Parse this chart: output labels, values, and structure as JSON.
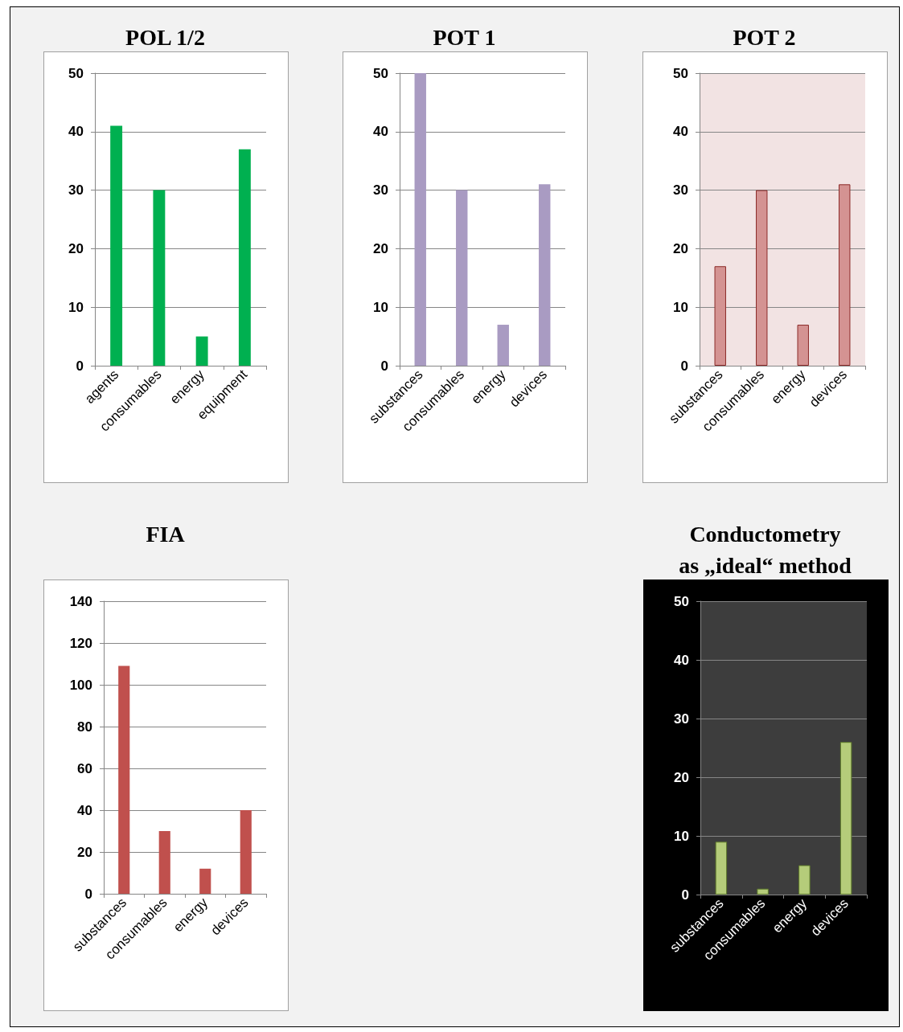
{
  "chart_data": [
    {
      "type": "bar",
      "title": "POL 1/2",
      "categories": [
        "agents",
        "consumables",
        "energy",
        "equipment"
      ],
      "values": [
        41,
        30,
        5,
        37
      ],
      "color": "#00b050",
      "ylim": [
        0,
        50
      ],
      "yticks": [
        0,
        10,
        20,
        30,
        40,
        50
      ],
      "grid": "y"
    },
    {
      "type": "bar",
      "title": "POT 1",
      "categories": [
        "substances",
        "consumables",
        "energy",
        "devices"
      ],
      "values": [
        50,
        30,
        7,
        31
      ],
      "color": "#a99bc2",
      "ylim": [
        0,
        50
      ],
      "yticks": [
        0,
        10,
        20,
        30,
        40,
        50
      ],
      "grid": "y"
    },
    {
      "type": "bar",
      "title": "POT 2",
      "categories": [
        "substances",
        "consumables",
        "energy",
        "devices"
      ],
      "values": [
        17,
        30,
        7,
        31
      ],
      "color": "#d49392",
      "ylim": [
        0,
        50
      ],
      "yticks": [
        0,
        10,
        20,
        30,
        40,
        50
      ],
      "grid": "y"
    },
    {
      "type": "bar",
      "title": "FIA",
      "categories": [
        "substances",
        "consumables",
        "energy",
        "devices"
      ],
      "values": [
        109,
        30,
        12,
        40
      ],
      "color": "#c0504d",
      "ylim": [
        0,
        140
      ],
      "yticks": [
        0,
        20,
        40,
        60,
        80,
        100,
        120,
        140
      ],
      "grid": "y"
    },
    {
      "type": "bar",
      "title": "Conductometry\nas „ideal“ method",
      "categories": [
        "substances",
        "consumables",
        "energy",
        "devices"
      ],
      "values": [
        9,
        1,
        5,
        26
      ],
      "color": "#b5cc7a",
      "ylim": [
        0,
        50
      ],
      "yticks": [
        0,
        10,
        20,
        30,
        40,
        50
      ],
      "grid": "y"
    }
  ]
}
